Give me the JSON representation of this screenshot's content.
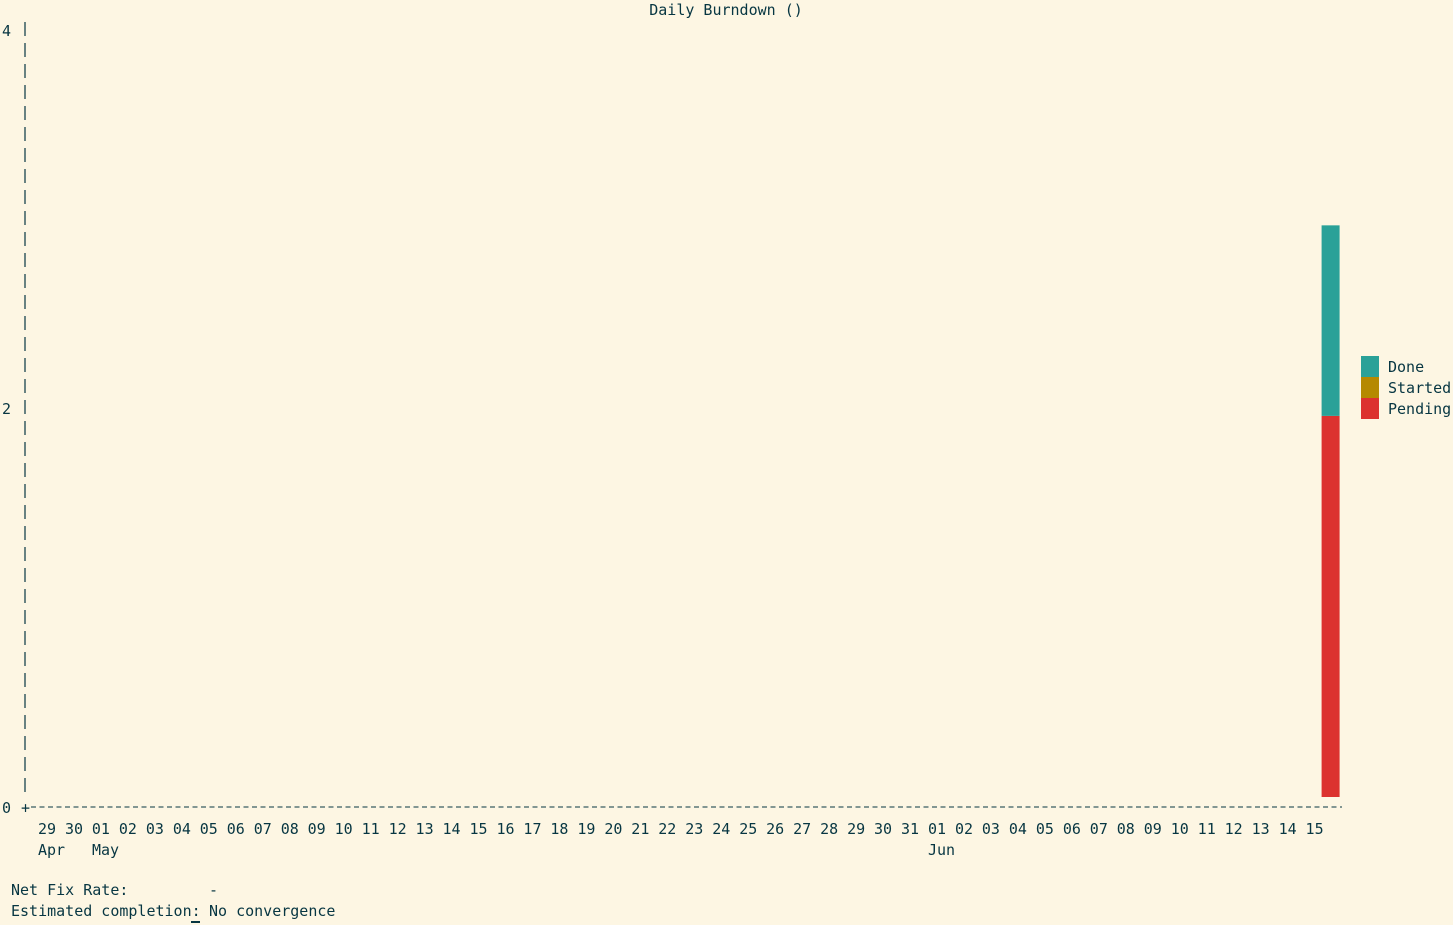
{
  "chart_data": {
    "type": "bar",
    "stacked": true,
    "title": "Daily Burndown ()",
    "ylim": [
      0,
      4
    ],
    "y_ticks": [
      "0",
      "2",
      "4"
    ],
    "grid": false,
    "legend_position": "right",
    "categories": [
      "29",
      "30",
      "01",
      "02",
      "03",
      "04",
      "05",
      "06",
      "07",
      "08",
      "09",
      "10",
      "11",
      "12",
      "13",
      "14",
      "15",
      "16",
      "17",
      "18",
      "19",
      "20",
      "21",
      "22",
      "23",
      "24",
      "25",
      "26",
      "27",
      "28",
      "29",
      "30",
      "31",
      "01",
      "02",
      "03",
      "04",
      "05",
      "06",
      "07",
      "08",
      "09",
      "10",
      "11",
      "12",
      "13",
      "14",
      "15"
    ],
    "month_labels": [
      {
        "index": 0,
        "label": "Apr"
      },
      {
        "index": 2,
        "label": "May"
      },
      {
        "index": 33,
        "label": "Jun"
      }
    ],
    "series": [
      {
        "name": "Done",
        "color": "#2aa198",
        "values": [
          0,
          0,
          0,
          0,
          0,
          0,
          0,
          0,
          0,
          0,
          0,
          0,
          0,
          0,
          0,
          0,
          0,
          0,
          0,
          0,
          0,
          0,
          0,
          0,
          0,
          0,
          0,
          0,
          0,
          0,
          0,
          0,
          0,
          0,
          0,
          0,
          0,
          0,
          0,
          0,
          0,
          0,
          0,
          0,
          0,
          0,
          0,
          1
        ]
      },
      {
        "name": "Started",
        "color": "#b58900",
        "values": [
          0,
          0,
          0,
          0,
          0,
          0,
          0,
          0,
          0,
          0,
          0,
          0,
          0,
          0,
          0,
          0,
          0,
          0,
          0,
          0,
          0,
          0,
          0,
          0,
          0,
          0,
          0,
          0,
          0,
          0,
          0,
          0,
          0,
          0,
          0,
          0,
          0,
          0,
          0,
          0,
          0,
          0,
          0,
          0,
          0,
          0,
          0,
          0
        ]
      },
      {
        "name": "Pending",
        "color": "#dc322f",
        "values": [
          0,
          0,
          0,
          0,
          0,
          0,
          0,
          0,
          0,
          0,
          0,
          0,
          0,
          0,
          0,
          0,
          0,
          0,
          0,
          0,
          0,
          0,
          0,
          0,
          0,
          0,
          0,
          0,
          0,
          0,
          0,
          0,
          0,
          0,
          0,
          0,
          0,
          0,
          0,
          0,
          0,
          0,
          0,
          0,
          0,
          0,
          0,
          2
        ]
      }
    ]
  },
  "footer": {
    "net_fix_rate_label": "Net Fix Rate:",
    "net_fix_rate_value": "-",
    "estimated_completion_label": "Estimated completion:",
    "estimated_completion_value": "No convergence"
  }
}
